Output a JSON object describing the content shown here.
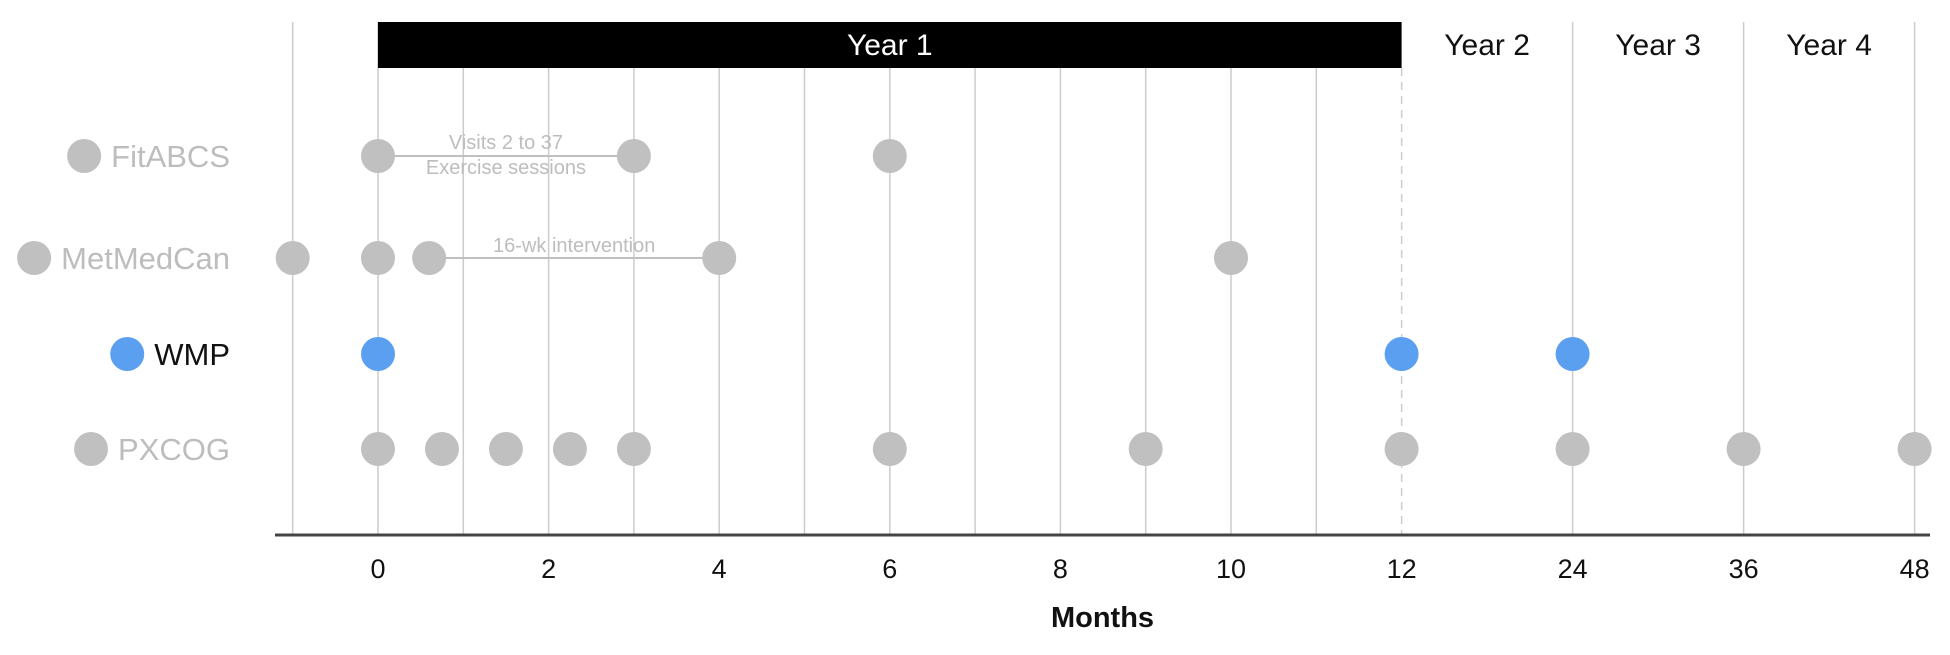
{
  "chart_data": {
    "type": "scatter",
    "title": "",
    "xlabel": "Months",
    "ylabel": "",
    "x_ticks": [
      "0",
      "2",
      "4",
      "6",
      "8",
      "10",
      "12",
      "24",
      "36",
      "48"
    ],
    "periods": [
      {
        "label": "Year 1",
        "start": 0,
        "end": 12,
        "highlighted": true
      },
      {
        "label": "Year 2",
        "start": 12,
        "end": 24,
        "highlighted": false
      },
      {
        "label": "Year 3",
        "start": 24,
        "end": 36,
        "highlighted": false
      },
      {
        "label": "Year 4",
        "start": 36,
        "end": 48,
        "highlighted": false
      }
    ],
    "grid": true,
    "series": [
      {
        "name": "FitABCS",
        "highlighted": false,
        "points": [
          0,
          3,
          6
        ],
        "annotations": [
          {
            "from": 0,
            "to": 3,
            "lines": [
              "Visits 2 to 37",
              "Exercise sessions"
            ]
          }
        ]
      },
      {
        "name": "MetMedCan",
        "highlighted": false,
        "points": [
          -1,
          0,
          0.6,
          4,
          10
        ],
        "annotations": [
          {
            "from": 0.6,
            "to": 4,
            "lines": [
              "16-wk intervention"
            ]
          }
        ]
      },
      {
        "name": "WMP",
        "highlighted": true,
        "points": [
          0,
          12,
          24
        ],
        "annotations": []
      },
      {
        "name": "PXCOG",
        "highlighted": false,
        "points": [
          0,
          0.75,
          1.5,
          2.25,
          3,
          6,
          9,
          12,
          24,
          36,
          48
        ],
        "annotations": []
      }
    ],
    "colors": {
      "highlight": "#5b9ff0",
      "muted": "#c0c0c0",
      "muted_text": "#bdbdbd",
      "grid": "#cccccc",
      "axis": "#444444",
      "year1_bar": "#000000"
    }
  }
}
